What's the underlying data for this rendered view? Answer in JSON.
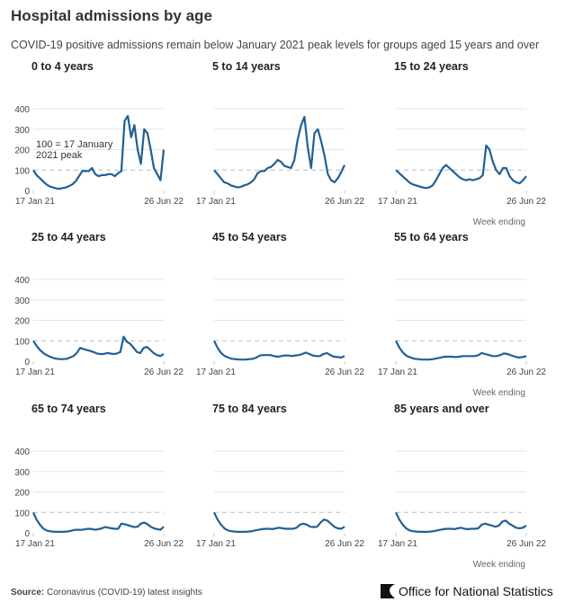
{
  "header": {
    "title": "Hospital admissions by age",
    "subtitle": "COVID-19 positive admissions remain below January 2021 peak levels for groups aged 15 years and over"
  },
  "footer": {
    "source_label": "Source:",
    "source_text": "Coronavirus (COVID-19) latest insights",
    "logo_text": "Office for National Statistics"
  },
  "colors": {
    "line": "#206095",
    "reference": "#bbbbbb",
    "grid": "#e6e6e6"
  },
  "chart_data": {
    "type": "line",
    "title": "Hospital admissions by age",
    "xlabel": "Week ending",
    "ylabel": "",
    "x_start": "17 Jan 21",
    "x_end": "26 Jun 22",
    "x_tick_labels": [
      "17 Jan 21",
      "26 Jun 22"
    ],
    "y_ticks": [
      0,
      100,
      200,
      300,
      400
    ],
    "ylim": [
      0,
      400
    ],
    "grid": true,
    "reference_line": {
      "value": 100,
      "label": "100 = 17 January 2021 peak"
    },
    "panels": [
      {
        "name": "0 to 4 years",
        "values": [
          100,
          75,
          60,
          45,
          30,
          20,
          15,
          10,
          8,
          12,
          15,
          22,
          30,
          45,
          70,
          95,
          95,
          95,
          110,
          80,
          70,
          75,
          75,
          80,
          80,
          70,
          85,
          95,
          340,
          365,
          260,
          320,
          200,
          130,
          300,
          280,
          200,
          110,
          80,
          50,
          200
        ]
      },
      {
        "name": "5 to 14 years",
        "values": [
          100,
          80,
          60,
          40,
          35,
          25,
          20,
          15,
          18,
          25,
          30,
          40,
          55,
          85,
          95,
          95,
          110,
          115,
          130,
          150,
          140,
          120,
          115,
          110,
          150,
          250,
          320,
          360,
          210,
          110,
          280,
          300,
          240,
          170,
          80,
          50,
          40,
          60,
          90,
          125
        ]
      },
      {
        "name": "15 to 24 years",
        "values": [
          100,
          85,
          70,
          55,
          40,
          30,
          25,
          20,
          15,
          12,
          15,
          25,
          50,
          80,
          110,
          125,
          110,
          95,
          80,
          65,
          55,
          50,
          55,
          50,
          55,
          60,
          75,
          220,
          200,
          140,
          100,
          80,
          110,
          110,
          70,
          50,
          40,
          35,
          50,
          70
        ]
      },
      {
        "name": "25 to 44 years",
        "values": [
          100,
          75,
          55,
          40,
          30,
          22,
          16,
          12,
          10,
          10,
          12,
          18,
          25,
          40,
          65,
          60,
          55,
          50,
          45,
          38,
          35,
          35,
          40,
          38,
          35,
          38,
          45,
          120,
          95,
          85,
          65,
          45,
          40,
          65,
          70,
          55,
          40,
          30,
          25,
          35
        ]
      },
      {
        "name": "45 to 54 years",
        "values": [
          100,
          65,
          40,
          25,
          18,
          12,
          10,
          8,
          8,
          8,
          10,
          12,
          18,
          28,
          30,
          30,
          30,
          25,
          22,
          25,
          28,
          28,
          25,
          28,
          30,
          35,
          42,
          35,
          28,
          25,
          25,
          35,
          40,
          30,
          22,
          20,
          18,
          25
        ]
      },
      {
        "name": "55 to 64 years",
        "values": [
          100,
          65,
          40,
          25,
          18,
          12,
          10,
          8,
          8,
          8,
          10,
          14,
          18,
          22,
          22,
          22,
          20,
          22,
          25,
          25,
          25,
          25,
          28,
          40,
          35,
          30,
          25,
          25,
          30,
          38,
          35,
          28,
          22,
          18,
          20,
          25
        ]
      },
      {
        "name": "65 to 74 years",
        "values": [
          100,
          65,
          40,
          22,
          12,
          8,
          6,
          5,
          5,
          5,
          6,
          8,
          12,
          15,
          15,
          15,
          18,
          20,
          18,
          15,
          18,
          22,
          28,
          25,
          22,
          20,
          20,
          45,
          42,
          38,
          32,
          28,
          30,
          45,
          50,
          42,
          30,
          22,
          18,
          15,
          30
        ]
      },
      {
        "name": "75 to 84 years",
        "values": [
          100,
          65,
          40,
          22,
          12,
          8,
          6,
          5,
          5,
          5,
          6,
          8,
          12,
          15,
          18,
          20,
          20,
          18,
          22,
          25,
          22,
          20,
          20,
          20,
          25,
          40,
          45,
          40,
          30,
          28,
          30,
          50,
          65,
          60,
          45,
          30,
          22,
          20,
          30
        ]
      },
      {
        "name": "85 years and over",
        "values": [
          100,
          65,
          40,
          22,
          12,
          8,
          6,
          5,
          5,
          5,
          6,
          8,
          12,
          15,
          18,
          20,
          20,
          18,
          22,
          25,
          20,
          18,
          20,
          20,
          22,
          40,
          45,
          40,
          35,
          30,
          35,
          55,
          60,
          45,
          35,
          25,
          22,
          25,
          35
        ]
      }
    ]
  }
}
